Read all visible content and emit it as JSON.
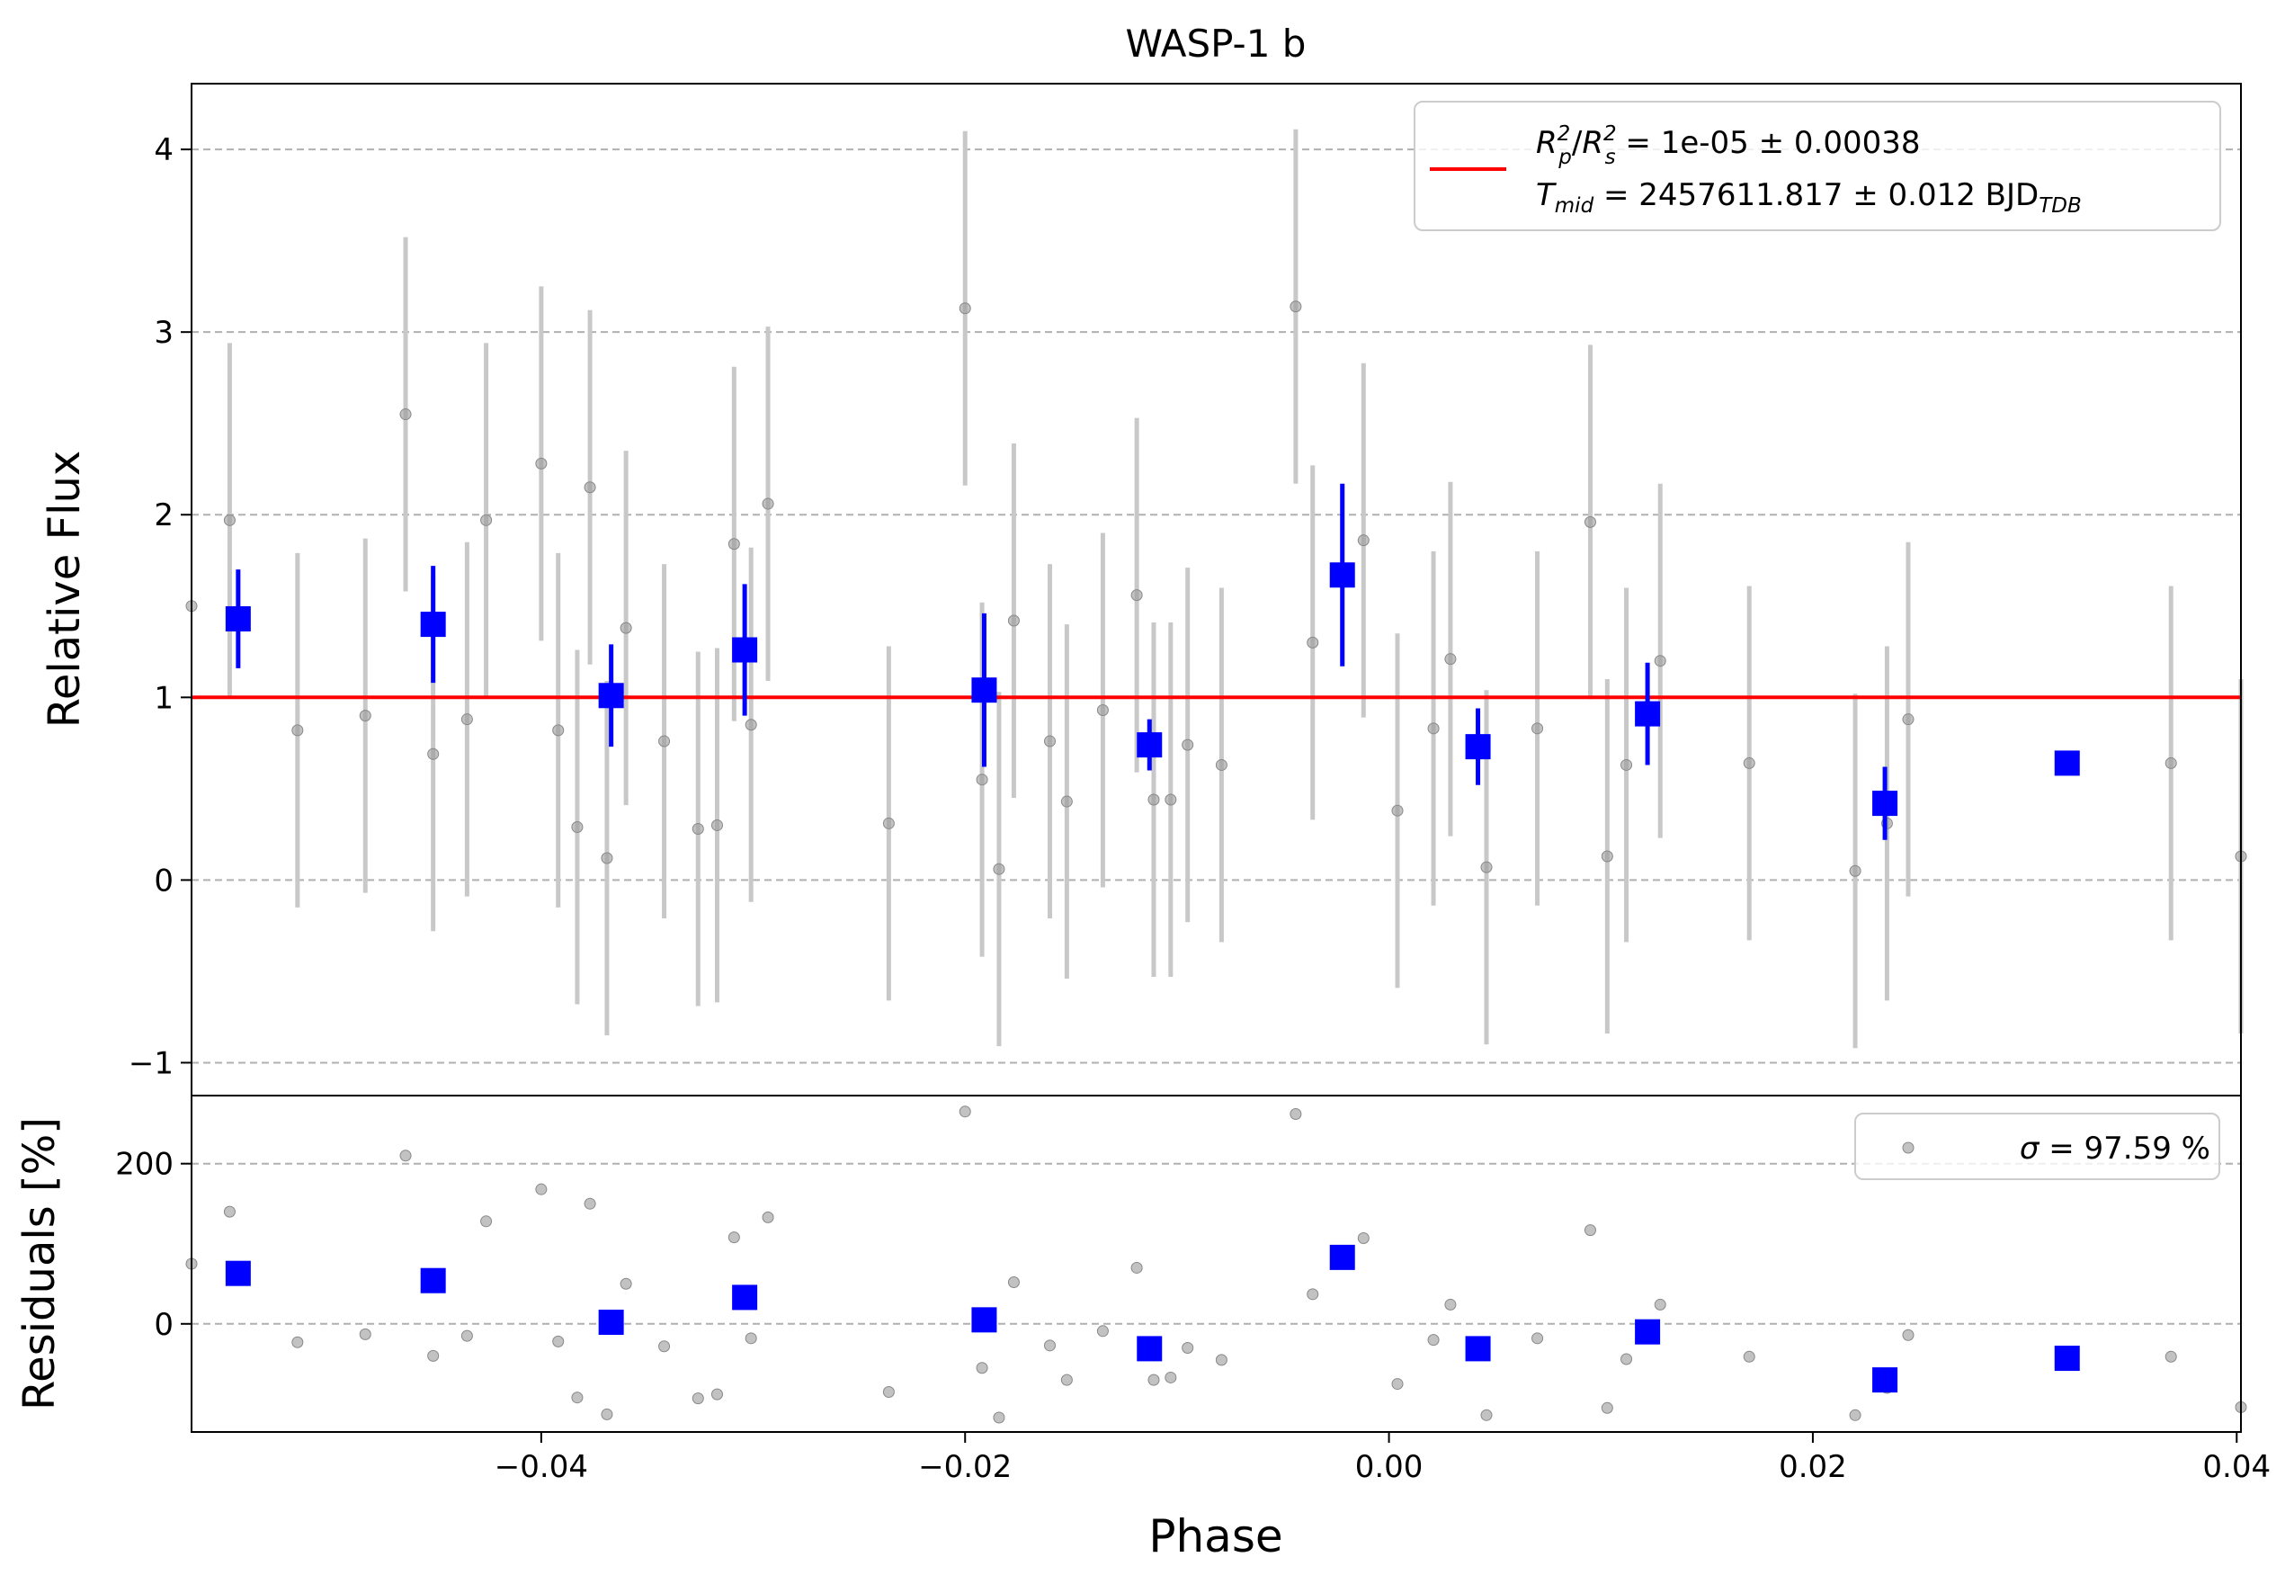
{
  "chart_data": [
    {
      "type": "scatter",
      "title": "WASP-1 b",
      "xlabel": "",
      "ylabel": "Relative Flux",
      "xlim": [
        -0.0565,
        0.0402
      ],
      "ylim": [
        -1.18,
        4.36
      ],
      "xticks": [
        -0.04,
        -0.02,
        0.0,
        0.02,
        0.04
      ],
      "yticks": [
        -1,
        0,
        1,
        2,
        3,
        4
      ],
      "ytick_labels": [
        "−1",
        "0",
        "1",
        "2",
        "3",
        "4"
      ],
      "grid": "y-dashed",
      "legend_position": "top-right",
      "legend": {
        "line1_prefix": "R",
        "line1_eq": " = 1e-05 ± 0.00038",
        "line2_prefix": "T",
        "line2_sub": "mid",
        "line2_eq": " = 2457611.817 ± 0.012 BJD",
        "line2_unit_sub": "TDB"
      },
      "model_line": {
        "y": 1.0,
        "color": "#ff0000"
      },
      "raw_points": {
        "color": "#999999",
        "x": [
          -0.0565,
          -0.0547,
          -0.0515,
          -0.0483,
          -0.0464,
          -0.0451,
          -0.0435,
          -0.0426,
          -0.04,
          -0.0392,
          -0.0383,
          -0.0377,
          -0.0369,
          -0.036,
          -0.0342,
          -0.0326,
          -0.0317,
          -0.0309,
          -0.0301,
          -0.0293,
          -0.0236,
          -0.02,
          -0.0192,
          -0.0184,
          -0.0177,
          -0.016,
          -0.0152,
          -0.0135,
          -0.0119,
          -0.0111,
          -0.0103,
          -0.0095,
          -0.0079,
          -0.0044,
          -0.0036,
          -0.0012,
          0.0004,
          0.0021,
          0.0029,
          0.0046,
          0.007,
          0.0095,
          0.0103,
          0.0112,
          0.0128,
          0.017,
          0.022,
          0.0235,
          0.0245,
          0.0369,
          0.0402
        ],
        "y": [
          1.5,
          1.97,
          0.82,
          0.9,
          2.55,
          0.69,
          0.88,
          1.97,
          2.28,
          0.82,
          0.29,
          2.15,
          0.12,
          1.38,
          0.76,
          0.28,
          0.3,
          1.84,
          0.85,
          2.06,
          0.31,
          3.13,
          0.55,
          0.06,
          1.42,
          0.76,
          0.43,
          0.93,
          1.56,
          0.44,
          0.44,
          0.74,
          0.63,
          3.14,
          1.3,
          1.86,
          0.38,
          0.83,
          1.21,
          0.07,
          0.83,
          1.96,
          0.13,
          0.63,
          1.2,
          0.64,
          0.05,
          0.31,
          0.88,
          0.64,
          0.13
        ],
        "err": [
          0.0,
          0.97,
          0.97,
          0.97,
          0.97,
          0.97,
          0.97,
          0.97,
          0.97,
          0.97,
          0.97,
          0.97,
          0.97,
          0.97,
          0.97,
          0.97,
          0.97,
          0.97,
          0.97,
          0.97,
          0.97,
          0.97,
          0.97,
          0.97,
          0.97,
          0.97,
          0.97,
          0.97,
          0.97,
          0.97,
          0.97,
          0.97,
          0.97,
          0.97,
          0.97,
          0.97,
          0.97,
          0.97,
          0.97,
          0.97,
          0.97,
          0.97,
          0.97,
          0.97,
          0.97,
          0.97,
          0.97,
          0.97,
          0.97,
          0.97,
          0.97
        ]
      },
      "binned_points": {
        "color": "#0000ff",
        "x": [
          -0.0543,
          -0.0451,
          -0.0367,
          -0.0304,
          -0.0191,
          -0.0113,
          -0.0022,
          0.0042,
          0.0122,
          0.0234,
          0.032
        ],
        "y": [
          1.43,
          1.4,
          1.01,
          1.26,
          1.04,
          0.74,
          1.67,
          0.73,
          0.91,
          0.42,
          0.64
        ],
        "err": [
          0.27,
          0.32,
          0.28,
          0.36,
          0.42,
          0.14,
          0.5,
          0.21,
          0.28,
          0.2,
          0.0
        ]
      }
    },
    {
      "type": "scatter",
      "title": "",
      "xlabel": "Phase",
      "ylabel": "Residuals [%]",
      "xlim": [
        -0.0565,
        0.0402
      ],
      "ylim": [
        -135,
        285
      ],
      "xticks": [
        -0.04,
        -0.02,
        0.0,
        0.02,
        0.04
      ],
      "xtick_labels": [
        "−0.04",
        "−0.02",
        "0.00",
        "0.02",
        "0.04"
      ],
      "yticks": [
        0,
        200
      ],
      "ytick_labels": [
        "0",
        "200"
      ],
      "grid": "y-dashed",
      "legend_position": "top-right",
      "legend": {
        "sigma_symbol": "σ",
        "sigma_text": " = 97.59 %"
      },
      "raw_points": {
        "color": "#999999",
        "x": [
          -0.0565,
          -0.0547,
          -0.0515,
          -0.0483,
          -0.0464,
          -0.0451,
          -0.0435,
          -0.0426,
          -0.04,
          -0.0392,
          -0.0383,
          -0.0377,
          -0.0369,
          -0.036,
          -0.0342,
          -0.0326,
          -0.0317,
          -0.0309,
          -0.0301,
          -0.0293,
          -0.0236,
          -0.02,
          -0.0192,
          -0.0184,
          -0.0177,
          -0.016,
          -0.0152,
          -0.0135,
          -0.0119,
          -0.0111,
          -0.0103,
          -0.0095,
          -0.0079,
          -0.0044,
          -0.0036,
          -0.0012,
          0.0004,
          0.0021,
          0.0029,
          0.0046,
          0.007,
          0.0095,
          0.0103,
          0.0112,
          0.0128,
          0.017,
          0.022,
          0.0235,
          0.0245,
          0.0369,
          0.0402
        ],
        "y": [
          75,
          140,
          -23,
          -13,
          210,
          -40,
          -15,
          128,
          168,
          -22,
          -92,
          150,
          -113,
          50,
          -28,
          -93,
          -88,
          108,
          -18,
          133,
          -85,
          265,
          -55,
          -117,
          52,
          -27,
          -70,
          -9,
          70,
          -70,
          -67,
          -30,
          -45,
          262,
          37,
          107,
          -75,
          -20,
          24,
          -114,
          -18,
          117,
          -105,
          -44,
          24,
          -41,
          -114,
          -80,
          -14,
          -41,
          -104
        ]
      },
      "binned_points": {
        "color": "#0000ff",
        "x": [
          -0.0543,
          -0.0451,
          -0.0367,
          -0.0304,
          -0.0191,
          -0.0113,
          -0.0022,
          0.0042,
          0.0122,
          0.0234,
          0.032
        ],
        "y": [
          63,
          54,
          2,
          33,
          5,
          -31,
          83,
          -31,
          -10,
          -70,
          -43
        ]
      }
    }
  ]
}
